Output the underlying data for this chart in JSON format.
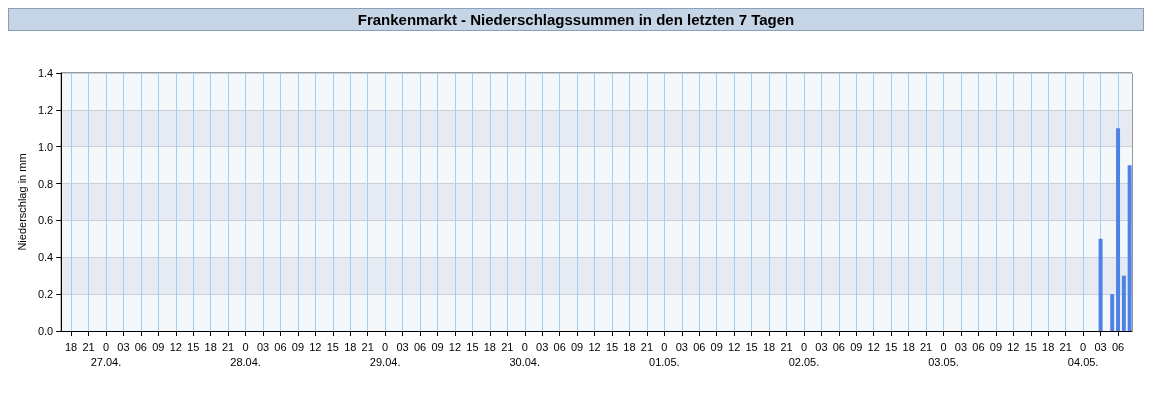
{
  "chart_data": {
    "type": "bar",
    "title": "Frankenmarkt - Niederschlagssummen in den letzten 7 Tagen",
    "ylabel": "Niederschlag in mm",
    "x": [
      "--05-04T03:00",
      "--05-04T05:00",
      "--05-04T06:00",
      "--05-04T07:00",
      "--05-04T08:00"
    ],
    "values": [
      0.5,
      0.2,
      1.1,
      0.3,
      0.9
    ],
    "color": "#4f81e6",
    "xlim": [
      "--04-26T16:18",
      "--05-04T08:24"
    ],
    "xticks": [
      {
        "value": "--04-26T18:00",
        "label": "18"
      },
      {
        "value": "--04-26T21:00",
        "label": "21"
      },
      {
        "value": "--04-27T00:00",
        "label": "0\n27.04."
      },
      {
        "value": "--04-27T03:00",
        "label": "03"
      },
      {
        "value": "--04-27T06:00",
        "label": "06"
      },
      {
        "value": "--04-27T09:00",
        "label": "09"
      },
      {
        "value": "--04-27T12:00",
        "label": "12"
      },
      {
        "value": "--04-27T15:00",
        "label": "15"
      },
      {
        "value": "--04-27T18:00",
        "label": "18"
      },
      {
        "value": "--04-27T21:00",
        "label": "21"
      },
      {
        "value": "--04-28T00:00",
        "label": "0\n28.04."
      },
      {
        "value": "--04-28T03:00",
        "label": "03"
      },
      {
        "value": "--04-28T06:00",
        "label": "06"
      },
      {
        "value": "--04-28T09:00",
        "label": "09"
      },
      {
        "value": "--04-28T12:00",
        "label": "12"
      },
      {
        "value": "--04-28T15:00",
        "label": "15"
      },
      {
        "value": "--04-28T18:00",
        "label": "18"
      },
      {
        "value": "--04-28T21:00",
        "label": "21"
      },
      {
        "value": "--04-29T00:00",
        "label": "0\n29.04."
      },
      {
        "value": "--04-29T03:00",
        "label": "03"
      },
      {
        "value": "--04-29T06:00",
        "label": "06"
      },
      {
        "value": "--04-29T09:00",
        "label": "09"
      },
      {
        "value": "--04-29T12:00",
        "label": "12"
      },
      {
        "value": "--04-29T15:00",
        "label": "15"
      },
      {
        "value": "--04-29T18:00",
        "label": "18"
      },
      {
        "value": "--04-29T21:00",
        "label": "21"
      },
      {
        "value": "--04-30T00:00",
        "label": "0\n30.04."
      },
      {
        "value": "--04-30T03:00",
        "label": "03"
      },
      {
        "value": "--04-30T06:00",
        "label": "06"
      },
      {
        "value": "--04-30T09:00",
        "label": "09"
      },
      {
        "value": "--04-30T12:00",
        "label": "12"
      },
      {
        "value": "--04-30T15:00",
        "label": "15"
      },
      {
        "value": "--04-30T18:00",
        "label": "18"
      },
      {
        "value": "--04-30T21:00",
        "label": "21"
      },
      {
        "value": "--05-01T00:00",
        "label": "0\n01.05."
      },
      {
        "value": "--05-01T03:00",
        "label": "03"
      },
      {
        "value": "--05-01T06:00",
        "label": "06"
      },
      {
        "value": "--05-01T09:00",
        "label": "09"
      },
      {
        "value": "--05-01T12:00",
        "label": "12"
      },
      {
        "value": "--05-01T15:00",
        "label": "15"
      },
      {
        "value": "--05-01T18:00",
        "label": "18"
      },
      {
        "value": "--05-01T21:00",
        "label": "21"
      },
      {
        "value": "--05-02T00:00",
        "label": "0\n02.05."
      },
      {
        "value": "--05-02T03:00",
        "label": "03"
      },
      {
        "value": "--05-02T06:00",
        "label": "06"
      },
      {
        "value": "--05-02T09:00",
        "label": "09"
      },
      {
        "value": "--05-02T12:00",
        "label": "12"
      },
      {
        "value": "--05-02T15:00",
        "label": "15"
      },
      {
        "value": "--05-02T18:00",
        "label": "18"
      },
      {
        "value": "--05-02T21:00",
        "label": "21"
      },
      {
        "value": "--05-03T00:00",
        "label": "0\n03.05."
      },
      {
        "value": "--05-03T03:00",
        "label": "03"
      },
      {
        "value": "--05-03T06:00",
        "label": "06"
      },
      {
        "value": "--05-03T09:00",
        "label": "09"
      },
      {
        "value": "--05-03T12:00",
        "label": "12"
      },
      {
        "value": "--05-03T15:00",
        "label": "15"
      },
      {
        "value": "--05-03T18:00",
        "label": "18"
      },
      {
        "value": "--05-03T21:00",
        "label": "21"
      },
      {
        "value": "--05-04T00:00",
        "label": "0\n04.05."
      },
      {
        "value": "--05-04T03:00",
        "label": "03"
      },
      {
        "value": "--05-04T06:00",
        "label": "06"
      }
    ],
    "ylim": [
      0,
      1.4
    ],
    "yticks": [
      {
        "value": 0,
        "label": "0.0"
      },
      {
        "value": 0.2,
        "label": "0.2"
      },
      {
        "value": 0.4,
        "label": "0.4"
      },
      {
        "value": 0.6,
        "label": "0.6"
      },
      {
        "value": 0.8,
        "label": "0.8"
      },
      {
        "value": 1.0,
        "label": "1.0"
      },
      {
        "value": 1.2,
        "label": "1.2"
      },
      {
        "value": 1.4,
        "label": "1.4"
      }
    ],
    "grid": true
  }
}
